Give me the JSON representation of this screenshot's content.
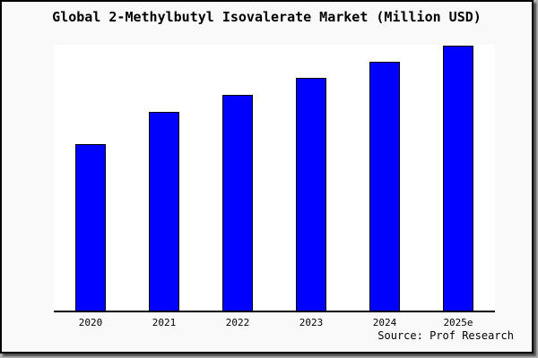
{
  "frame": {
    "background": "#f9f9f9",
    "border_color": "#000000",
    "shadow_color": "#555555"
  },
  "chart_data": {
    "type": "bar",
    "title": "Global 2-Methylbutyl Isovalerate Market (Million USD)",
    "categories": [
      "2020",
      "2021",
      "2022",
      "2023",
      "2024",
      "2025e"
    ],
    "values": [
      62.8,
      75.2,
      81.5,
      87.9,
      94.0,
      100.0
    ],
    "values_note": "no y-axis tick labels are rendered; values are relative bar heights with 2025e = 100",
    "xlabel": "",
    "ylabel": "",
    "ylim": [
      0,
      100.4
    ],
    "grid": false,
    "legend": false,
    "bar_color": "#0000ff",
    "bar_border_color": "#000000",
    "plot_background": "#ffffff",
    "axis_color": "#000000",
    "source_label": "Source: Prof Research"
  }
}
